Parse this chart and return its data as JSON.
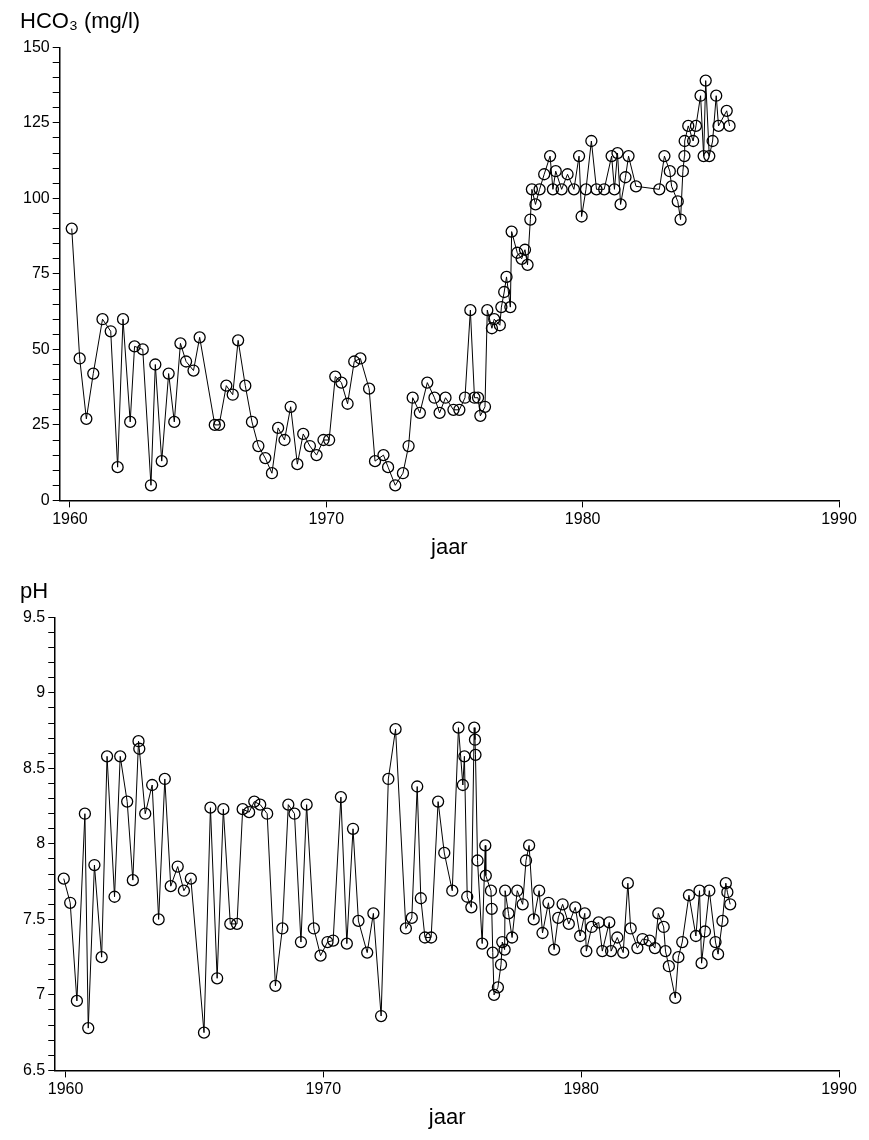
{
  "chart_data": [
    {
      "type": "line",
      "ylabel": "HCO₃ (mg/l)",
      "xlabel": "jaar",
      "marker": "circle",
      "line_style": "solid",
      "grid": false,
      "legend": false,
      "xlim": [
        1959.6,
        1990
      ],
      "xticks": [
        1960,
        1970,
        1980,
        1990
      ],
      "ylim": [
        0,
        150
      ],
      "yticks": [
        0,
        {
          "value": 5,
          "label": null
        },
        {
          "value": 10,
          "label": null
        },
        {
          "value": 15,
          "label": null
        },
        {
          "value": 20,
          "label": null
        },
        25,
        {
          "value": 30,
          "label": null
        },
        {
          "value": 35,
          "label": null
        },
        {
          "value": 40,
          "label": null
        },
        {
          "value": 45,
          "label": null
        },
        50,
        {
          "value": 55,
          "label": null
        },
        {
          "value": 60,
          "label": null
        },
        {
          "value": 65,
          "label": null
        },
        {
          "value": 70,
          "label": null
        },
        75,
        {
          "value": 80,
          "label": null
        },
        {
          "value": 85,
          "label": null
        },
        {
          "value": 90,
          "label": null
        },
        {
          "value": 95,
          "label": null
        },
        100,
        {
          "value": 105,
          "label": null
        },
        {
          "value": 110,
          "label": null
        },
        {
          "value": 115,
          "label": null
        },
        {
          "value": 120,
          "label": null
        },
        125,
        {
          "value": 130,
          "label": null
        },
        {
          "value": 135,
          "label": null
        },
        {
          "value": 140,
          "label": null
        },
        {
          "value": 145,
          "label": null
        },
        150
      ],
      "series": [
        {
          "color": "#000000",
          "x": [
            1960.07,
            1960.38,
            1960.64,
            1960.91,
            1961.27,
            1961.59,
            1961.86,
            1962.07,
            1962.35,
            1962.52,
            1962.84,
            1963.16,
            1963.33,
            1963.58,
            1963.85,
            1964.07,
            1964.31,
            1964.53,
            1964.82,
            1965.06,
            1965.65,
            1965.82,
            1966.1,
            1966.35,
            1966.56,
            1966.84,
            1967.1,
            1967.35,
            1967.62,
            1967.88,
            1968.12,
            1968.37,
            1968.61,
            1968.87,
            1969.1,
            1969.36,
            1969.62,
            1969.89,
            1970.11,
            1970.35,
            1970.59,
            1970.83,
            1971.09,
            1971.33,
            1971.67,
            1971.9,
            1972.23,
            1972.41,
            1972.69,
            1972.99,
            1973.21,
            1973.37,
            1973.65,
            1973.94,
            1974.22,
            1974.42,
            1974.65,
            1974.96,
            1975.19,
            1975.41,
            1975.62,
            1975.78,
            1975.92,
            1976.01,
            1976.19,
            1976.28,
            1976.46,
            1976.55,
            1976.77,
            1976.83,
            1976.94,
            1977.03,
            1977.18,
            1977.23,
            1977.45,
            1977.62,
            1977.75,
            1977.85,
            1977.96,
            1978.02,
            1978.16,
            1978.32,
            1978.5,
            1978.73,
            1978.84,
            1978.95,
            1979.18,
            1979.41,
            1979.66,
            1979.86,
            1979.96,
            1980.13,
            1980.34,
            1980.54,
            1980.84,
            1981.13,
            1981.24,
            1981.36,
            1981.48,
            1981.67,
            1981.79,
            1982.08,
            1982.99,
            1983.19,
            1983.4,
            1983.47,
            1983.71,
            1983.82,
            1983.91,
            1983.97,
            1983.98,
            1984.12,
            1984.31,
            1984.42,
            1984.6,
            1984.72,
            1984.8,
            1984.94,
            1985.07,
            1985.21,
            1985.3,
            1985.62,
            1985.73
          ],
          "values": [
            90,
            47,
            27,
            42,
            60,
            56,
            11,
            60,
            26,
            51,
            50,
            5,
            45,
            13,
            42,
            26,
            52,
            46,
            43,
            54,
            25,
            25,
            38,
            35,
            53,
            38,
            26,
            18,
            14,
            9,
            24,
            20,
            31,
            12,
            22,
            18,
            15,
            20,
            20,
            41,
            39,
            32,
            46,
            47,
            37,
            13,
            15,
            11,
            5,
            9,
            18,
            34,
            29,
            39,
            34,
            29,
            34,
            30,
            30,
            34,
            63,
            34,
            34,
            28,
            31,
            63,
            57,
            60,
            58,
            64,
            69,
            74,
            64,
            89,
            82,
            80,
            83,
            78,
            93,
            103,
            98,
            103,
            108,
            114,
            103,
            109,
            103,
            108,
            103,
            114,
            94,
            103,
            119,
            103,
            103,
            114,
            103,
            115,
            98,
            107,
            114,
            104,
            103,
            114,
            109,
            104,
            99,
            93,
            109,
            114,
            119,
            124,
            119,
            124,
            134,
            114,
            139,
            114,
            119,
            134,
            124,
            129,
            124
          ]
        }
      ]
    },
    {
      "type": "line",
      "ylabel": "pH",
      "xlabel": "jaar",
      "marker": "circle",
      "line_style": "solid",
      "grid": false,
      "legend": false,
      "xlim": [
        1959.6,
        1990
      ],
      "xticks": [
        1960,
        1970,
        1980,
        1990
      ],
      "ylim": [
        6.5,
        9.5
      ],
      "yticks": [
        6.5,
        {
          "value": 6.6,
          "label": null
        },
        {
          "value": 6.7,
          "label": null
        },
        {
          "value": 6.8,
          "label": null
        },
        {
          "value": 6.9,
          "label": null
        },
        7,
        {
          "value": 7.1,
          "label": null
        },
        {
          "value": 7.2,
          "label": null
        },
        {
          "value": 7.3,
          "label": null
        },
        {
          "value": 7.4,
          "label": null
        },
        7.5,
        {
          "value": 7.6,
          "label": null
        },
        {
          "value": 7.7,
          "label": null
        },
        {
          "value": 7.8,
          "label": null
        },
        {
          "value": 7.9,
          "label": null
        },
        8,
        {
          "value": 8.1,
          "label": null
        },
        {
          "value": 8.2,
          "label": null
        },
        {
          "value": 8.3,
          "label": null
        },
        {
          "value": 8.4,
          "label": null
        },
        8.5,
        {
          "value": 8.6,
          "label": null
        },
        {
          "value": 8.7,
          "label": null
        },
        {
          "value": 8.8,
          "label": null
        },
        {
          "value": 8.9,
          "label": null
        },
        9,
        {
          "value": 9.1,
          "label": null
        },
        {
          "value": 9.2,
          "label": null
        },
        {
          "value": 9.3,
          "label": null
        },
        {
          "value": 9.4,
          "label": null
        },
        9.5
      ],
      "series": [
        {
          "color": "#000000",
          "x": [
            1959.93,
            1960.18,
            1960.44,
            1960.75,
            1960.88,
            1961.12,
            1961.4,
            1961.61,
            1961.9,
            1962.12,
            1962.39,
            1962.61,
            1962.83,
            1962.86,
            1963.09,
            1963.36,
            1963.61,
            1963.85,
            1964.08,
            1964.35,
            1964.59,
            1964.86,
            1965.37,
            1965.62,
            1965.88,
            1966.12,
            1966.39,
            1966.65,
            1966.87,
            1967.12,
            1967.32,
            1967.55,
            1967.82,
            1968.14,
            1968.41,
            1968.64,
            1968.88,
            1969.13,
            1969.35,
            1969.63,
            1969.89,
            1970.16,
            1970.38,
            1970.68,
            1970.91,
            1971.15,
            1971.36,
            1971.7,
            1971.94,
            1972.24,
            1972.52,
            1972.8,
            1973.2,
            1973.43,
            1973.64,
            1973.78,
            1973.94,
            1974.18,
            1974.45,
            1974.69,
            1975.0,
            1975.24,
            1975.41,
            1975.47,
            1975.58,
            1975.74,
            1975.85,
            1975.88,
            1975.9,
            1975.98,
            1976.16,
            1976.28,
            1976.3,
            1976.5,
            1976.53,
            1976.57,
            1976.62,
            1976.77,
            1976.89,
            1976.94,
            1977.03,
            1977.05,
            1977.18,
            1977.32,
            1977.52,
            1977.73,
            1977.86,
            1977.98,
            1978.16,
            1978.37,
            1978.5,
            1978.73,
            1978.95,
            1979.11,
            1979.28,
            1979.52,
            1979.77,
            1979.96,
            1980.14,
            1980.2,
            1980.41,
            1980.68,
            1980.82,
            1981.09,
            1981.16,
            1981.4,
            1981.63,
            1981.81,
            1981.92,
            1982.18,
            1982.38,
            1982.65,
            1982.86,
            1982.99,
            1983.2,
            1983.27,
            1983.4,
            1983.65,
            1983.77,
            1983.92,
            1984.18,
            1984.45,
            1984.59,
            1984.67,
            1984.8,
            1984.97,
            1985.21,
            1985.31,
            1985.48,
            1985.61,
            1985.67,
            1985.78
          ],
          "values": [
            7.77,
            7.61,
            6.96,
            8.2,
            6.78,
            7.86,
            7.25,
            8.58,
            7.65,
            8.58,
            8.28,
            7.76,
            8.68,
            8.63,
            8.2,
            8.39,
            7.5,
            8.43,
            7.72,
            7.85,
            7.69,
            7.77,
            6.75,
            8.24,
            7.11,
            8.23,
            7.47,
            7.47,
            8.23,
            8.21,
            8.28,
            8.26,
            8.2,
            7.06,
            7.44,
            8.26,
            8.2,
            7.35,
            8.26,
            7.44,
            7.26,
            7.35,
            7.36,
            8.31,
            7.34,
            8.1,
            7.49,
            7.28,
            7.54,
            6.86,
            8.43,
            8.76,
            7.44,
            7.51,
            8.38,
            7.64,
            7.38,
            7.38,
            8.28,
            7.94,
            7.69,
            8.77,
            8.39,
            8.58,
            7.65,
            7.58,
            8.77,
            8.69,
            8.59,
            7.89,
            7.34,
            7.99,
            7.79,
            7.69,
            7.57,
            7.28,
            7.0,
            7.05,
            7.2,
            7.35,
            7.3,
            7.69,
            7.54,
            7.38,
            7.69,
            7.6,
            7.89,
            7.99,
            7.5,
            7.69,
            7.41,
            7.61,
            7.3,
            7.51,
            7.6,
            7.47,
            7.58,
            7.39,
            7.54,
            7.29,
            7.45,
            7.48,
            7.29,
            7.48,
            7.29,
            7.38,
            7.28,
            7.74,
            7.44,
            7.31,
            7.37,
            7.36,
            7.31,
            7.54,
            7.45,
            7.29,
            7.19,
            6.98,
            7.25,
            7.35,
            7.66,
            7.39,
            7.69,
            7.21,
            7.42,
            7.69,
            7.35,
            7.27,
            7.49,
            7.74,
            7.68,
            7.6
          ]
        }
      ]
    }
  ]
}
